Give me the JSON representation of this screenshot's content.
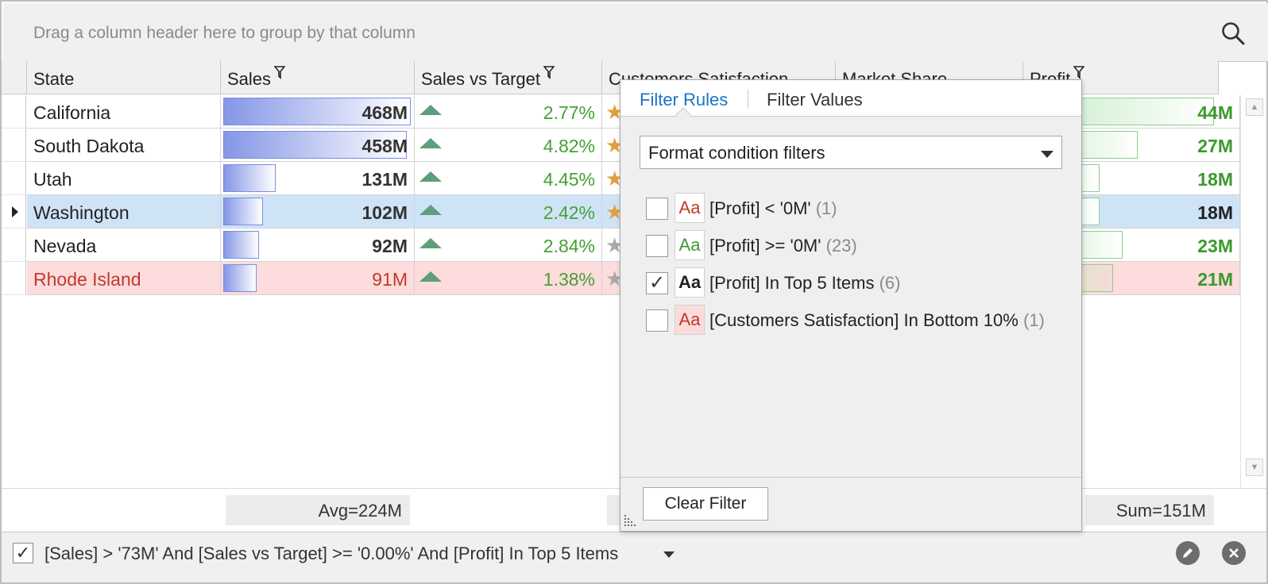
{
  "group_panel": {
    "hint": "Drag a column header here to group by that column"
  },
  "columns": [
    {
      "label": "State",
      "filtered": false
    },
    {
      "label": "Sales",
      "filtered": true
    },
    {
      "label": "Sales vs Target",
      "filtered": true
    },
    {
      "label": "Customers Satisfaction",
      "filtered": false
    },
    {
      "label": "Market Share",
      "filtered": false
    },
    {
      "label": "Profit",
      "filtered": true
    }
  ],
  "rows": [
    {
      "state": "California",
      "sales": "468M",
      "sales_fill": 1.0,
      "svt": "2.77%",
      "profit": "44M",
      "profit_fill": 1.0,
      "style": "normal"
    },
    {
      "state": "South Dakota",
      "sales": "458M",
      "sales_fill": 0.98,
      "svt": "4.82%",
      "profit": "27M",
      "profit_fill": 0.6,
      "style": "normal"
    },
    {
      "state": "Utah",
      "sales": "131M",
      "sales_fill": 0.28,
      "svt": "4.45%",
      "profit": "18M",
      "profit_fill": 0.4,
      "style": "normal"
    },
    {
      "state": "Washington",
      "sales": "102M",
      "sales_fill": 0.21,
      "svt": "2.42%",
      "profit": "18M",
      "profit_fill": 0.4,
      "style": "selected"
    },
    {
      "state": "Nevada",
      "sales": "92M",
      "sales_fill": 0.19,
      "svt": "2.84%",
      "profit": "23M",
      "profit_fill": 0.52,
      "style": "normal"
    },
    {
      "state": "Rhode Island",
      "sales": "91M",
      "sales_fill": 0.18,
      "svt": "1.38%",
      "profit": "21M",
      "profit_fill": 0.47,
      "style": "highlight"
    }
  ],
  "totals": {
    "sales": "Avg=224M",
    "profit": "Sum=151M"
  },
  "filter_panel": {
    "enabled": true,
    "expression": "[Sales] > '73M' And [Sales vs Target] >= '0.00%' And [Profit] In Top 5 Items"
  },
  "popup": {
    "tabs": [
      "Filter Rules",
      "Filter Values"
    ],
    "active_tab": 0,
    "select_value": "Format condition filters",
    "rules": [
      {
        "label": "[Profit] < '0M'",
        "count": "(1)",
        "checked": false,
        "aa": "Aa",
        "aa_color": "#c0392b",
        "aa_bg": "#ffffff",
        "bold": false
      },
      {
        "label": "[Profit] >= '0M'",
        "count": "(23)",
        "checked": false,
        "aa": "Aa",
        "aa_color": "#3c9a2e",
        "aa_bg": "#ffffff",
        "bold": false
      },
      {
        "label": "[Profit] In Top 5 Items",
        "count": "(6)",
        "checked": true,
        "aa": "Aa",
        "aa_color": "#222222",
        "aa_bg": "#ffffff",
        "bold": true
      },
      {
        "label": "[Customers Satisfaction] In Bottom 10%",
        "count": "(1)",
        "checked": false,
        "aa": "Aa",
        "aa_color": "#c0392b",
        "aa_bg": "#fbdcdc",
        "bold": false
      }
    ],
    "clear_label": "Clear Filter"
  },
  "colors": {
    "accent": "#1b74c6",
    "selected_row": "#cfe3f6",
    "highlight_row": "#fcdcdc",
    "highlight_text": "#c0392b"
  },
  "icons": {
    "search": "search-icon",
    "funnel": "funnel-icon",
    "edit": "pencil-icon",
    "close": "close-icon"
  }
}
